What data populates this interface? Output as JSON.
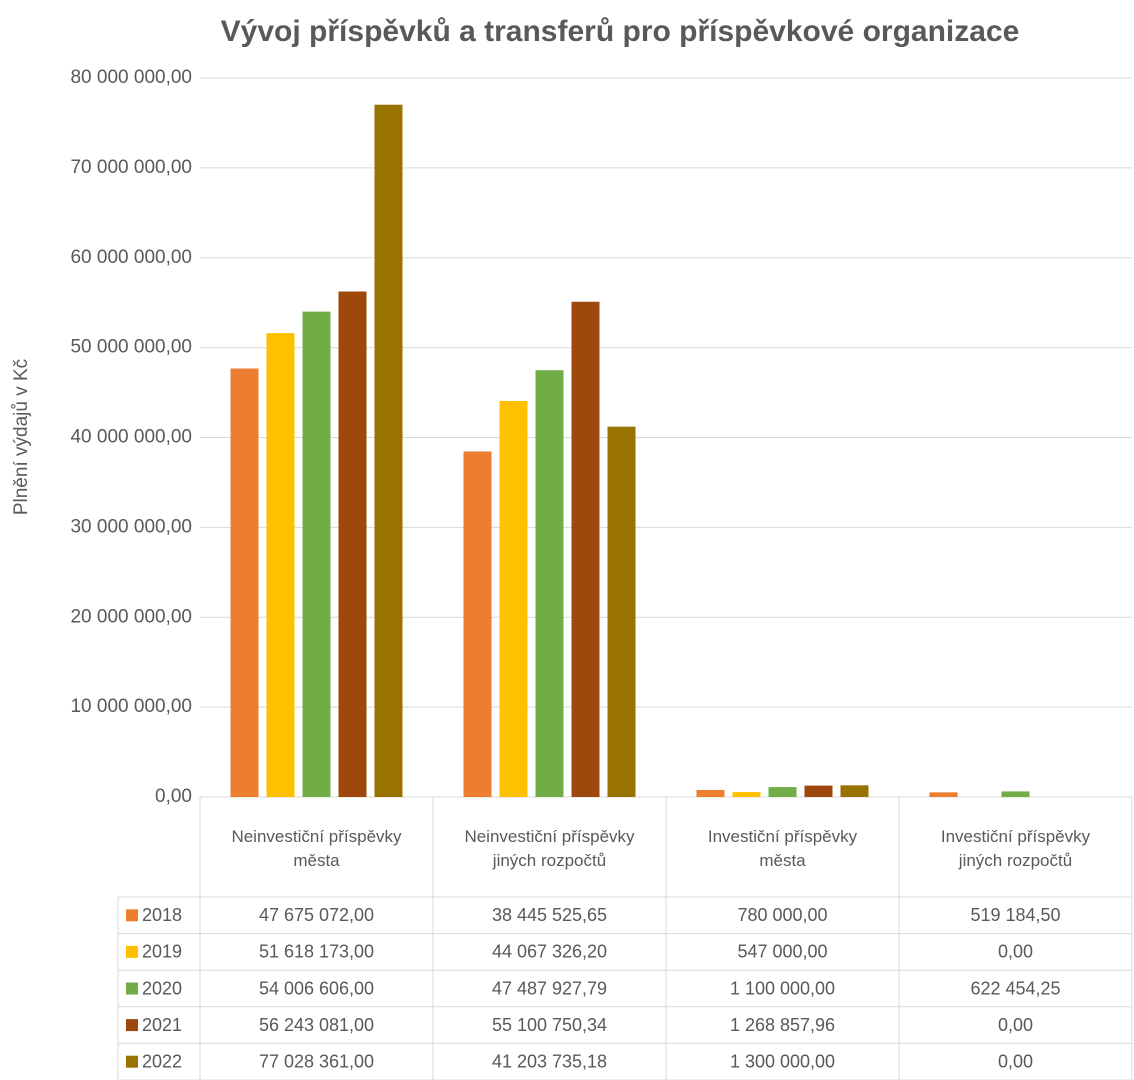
{
  "chart_data": {
    "type": "bar",
    "title": "Vývoj příspěvků a transferů pro příspěvkové organizace",
    "y_label": "Plnění výdajů v Kč",
    "categories": [
      "Neinvestiční příspěvky města",
      "Neinvestiční příspěvky jiných rozpočtů",
      "Investiční příspěvky města",
      "Investiční příspěvky jiných rozpočtů"
    ],
    "series": [
      {
        "name": "2018",
        "color": "#ed7d31",
        "values": [
          47675072.0,
          38445525.65,
          780000.0,
          519184.5
        ],
        "value_labels": [
          "47 675 072,00",
          "38 445 525,65",
          "780 000,00",
          "519 184,50"
        ]
      },
      {
        "name": "2019",
        "color": "#ffc000",
        "values": [
          51618173.0,
          44067326.2,
          547000.0,
          0
        ],
        "value_labels": [
          "51 618 173,00",
          "44 067 326,20",
          "547 000,00",
          "0,00"
        ]
      },
      {
        "name": "2020",
        "color": "#70ad47",
        "values": [
          54006606.0,
          47487927.79,
          1100000.0,
          622454.25
        ],
        "value_labels": [
          "54 006 606,00",
          "47 487 927,79",
          "1 100 000,00",
          "622 454,25"
        ]
      },
      {
        "name": "2021",
        "color": "#9e480e",
        "values": [
          56243081.0,
          55100750.34,
          1268857.96,
          0
        ],
        "value_labels": [
          "56 243 081,00",
          "55 100 750,34",
          "1 268 857,96",
          "0,00"
        ]
      },
      {
        "name": "2022",
        "color": "#997300",
        "values": [
          77028361.0,
          41203735.18,
          1300000.0,
          0
        ],
        "value_labels": [
          "77 028 361,00",
          "41 203 735,18",
          "1 300 000,00",
          "0,00"
        ]
      }
    ],
    "ylim": [
      0,
      80000000
    ],
    "yticks": [
      {
        "value": 0,
        "label": "0,00"
      },
      {
        "value": 10000000,
        "label": "10 000 000,00"
      },
      {
        "value": 20000000,
        "label": "20 000 000,00"
      },
      {
        "value": 30000000,
        "label": "30 000 000,00"
      },
      {
        "value": 40000000,
        "label": "40 000 000,00"
      },
      {
        "value": 50000000,
        "label": "50 000 000,00"
      },
      {
        "value": 60000000,
        "label": "60 000 000,00"
      },
      {
        "value": 70000000,
        "label": "70 000 000,00"
      },
      {
        "value": 80000000,
        "label": "80 000 000,00"
      }
    ],
    "grid": true
  }
}
